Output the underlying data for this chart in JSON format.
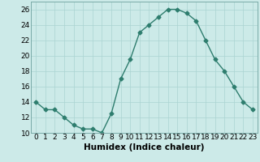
{
  "x": [
    0,
    1,
    2,
    3,
    4,
    5,
    6,
    7,
    8,
    9,
    10,
    11,
    12,
    13,
    14,
    15,
    16,
    17,
    18,
    19,
    20,
    21,
    22,
    23
  ],
  "y": [
    14,
    13,
    13,
    12,
    11,
    10.5,
    10.5,
    10,
    12.5,
    17,
    19.5,
    23,
    24,
    25,
    26,
    26,
    25.5,
    24.5,
    22,
    19.5,
    18,
    16,
    14,
    13
  ],
  "line_color": "#2e7d6e",
  "marker": "D",
  "marker_size": 2.5,
  "background_color": "#cceae8",
  "grid_color": "#aad4d2",
  "xlabel": "Humidex (Indice chaleur)",
  "ylim": [
    10,
    27
  ],
  "xlim": [
    -0.5,
    23.5
  ],
  "yticks": [
    10,
    12,
    14,
    16,
    18,
    20,
    22,
    24,
    26
  ],
  "xticks": [
    0,
    1,
    2,
    3,
    4,
    5,
    6,
    7,
    8,
    9,
    10,
    11,
    12,
    13,
    14,
    15,
    16,
    17,
    18,
    19,
    20,
    21,
    22,
    23
  ],
  "xtick_labels": [
    "0",
    "1",
    "2",
    "3",
    "4",
    "5",
    "6",
    "7",
    "8",
    "9",
    "10",
    "11",
    "12",
    "13",
    "14",
    "15",
    "16",
    "17",
    "18",
    "19",
    "20",
    "21",
    "22",
    "23"
  ],
  "xlabel_fontsize": 7.5,
  "tick_fontsize": 6.5,
  "line_width": 1.0
}
